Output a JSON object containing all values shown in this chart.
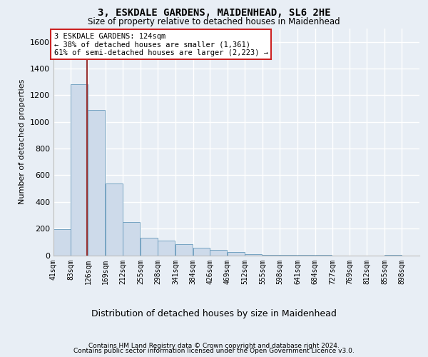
{
  "title1": "3, ESKDALE GARDENS, MAIDENHEAD, SL6 2HE",
  "title2": "Size of property relative to detached houses in Maidenhead",
  "xlabel": "Distribution of detached houses by size in Maidenhead",
  "ylabel": "Number of detached properties",
  "footnote1": "Contains HM Land Registry data © Crown copyright and database right 2024.",
  "footnote2": "Contains public sector information licensed under the Open Government Licence v3.0.",
  "annotation_line1": "3 ESKDALE GARDENS: 124sqm",
  "annotation_line2": "← 38% of detached houses are smaller (1,361)",
  "annotation_line3": "61% of semi-detached houses are larger (2,223) →",
  "bar_color": "#cddaea",
  "bar_edge_color": "#6699bb",
  "vline_color": "#993333",
  "vline_x": 124,
  "categories": [
    "41sqm",
    "83sqm",
    "126sqm",
    "169sqm",
    "212sqm",
    "255sqm",
    "298sqm",
    "341sqm",
    "384sqm",
    "426sqm",
    "469sqm",
    "512sqm",
    "555sqm",
    "598sqm",
    "641sqm",
    "684sqm",
    "727sqm",
    "769sqm",
    "812sqm",
    "855sqm",
    "898sqm"
  ],
  "bin_edges": [
    41,
    83,
    126,
    169,
    212,
    255,
    298,
    341,
    384,
    426,
    469,
    512,
    555,
    598,
    641,
    684,
    727,
    769,
    812,
    855,
    898,
    941
  ],
  "bar_heights": [
    195,
    1280,
    1090,
    540,
    250,
    130,
    108,
    82,
    58,
    38,
    22,
    10,
    5,
    3,
    2,
    1,
    0,
    0,
    0,
    1,
    0
  ],
  "ylim": [
    0,
    1700
  ],
  "yticks": [
    0,
    200,
    400,
    600,
    800,
    1000,
    1200,
    1400,
    1600
  ],
  "bg_color": "#e8eef5",
  "annotation_border_color": "#cc2222",
  "ann_fontsize": 7.5,
  "title1_fontsize": 10,
  "title2_fontsize": 8.5,
  "ylabel_fontsize": 8,
  "xlabel_fontsize": 9,
  "footnote_fontsize": 6.5,
  "tick_fontsize": 7
}
